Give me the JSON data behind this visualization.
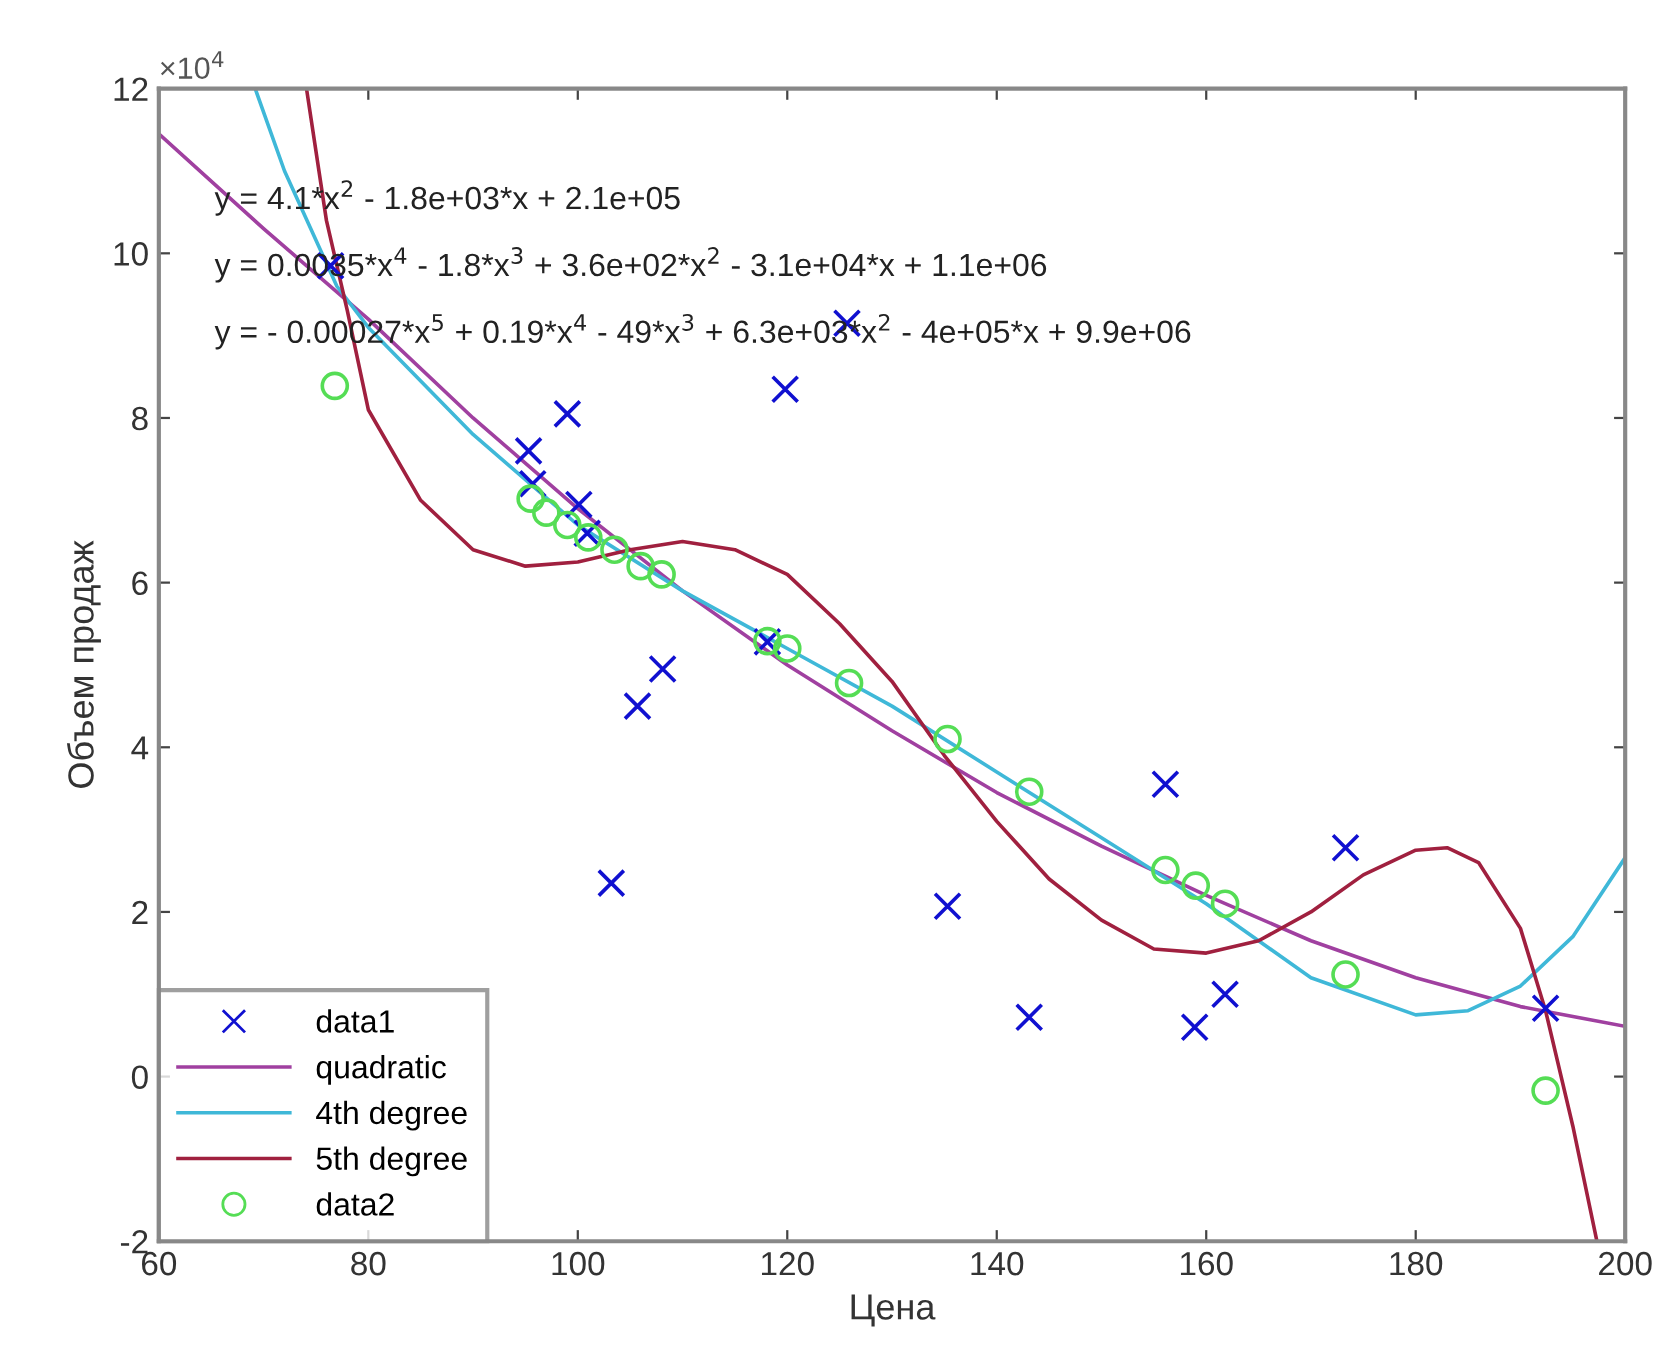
{
  "chart_data": {
    "type": "scatter",
    "xlabel": "Цена",
    "ylabel": "Объем продаж",
    "xlim": [
      60,
      200
    ],
    "xticks": [
      60,
      80,
      100,
      120,
      140,
      160,
      180,
      200
    ],
    "ylim": [
      -2,
      12
    ],
    "yticks": [
      -2,
      0,
      2,
      4,
      6,
      8,
      10,
      12
    ],
    "grid": false,
    "legend": "bottom left",
    "annotations": [
      "×10$^{4}$",
      "y = 4.1*x$^{2}$ - 1.8e+03*x + 2.1e+05",
      "y = 0.0035*x$^{4}$ - 1.8*x$^{3}$ + 3.6e+02*x$^{2}$ - 3.1e+04*x + 1.1e+06",
      "y = - 0.00027*x$^{5}$ + 0.19*x$^{4}$ - 49*x$^{3}$ + 6.3e+03*x$^{2}$ - 4e+05*x + 9.9e+06"
    ],
    "series": [
      {
        "name": "data1",
        "marker": "cross",
        "color": "#1010d0",
        "x": [
          76.4,
          95.3,
          95.7,
          99.0,
          100.1,
          100.9,
          108.1,
          105.7,
          103.2,
          118.1,
          125.7,
          119.8,
          135.3,
          143.1,
          156.1,
          161.8,
          158.9,
          173.3,
          192.4
        ],
        "values": [
          9.85,
          7.6,
          7.2,
          8.05,
          6.95,
          6.6,
          4.95,
          4.5,
          2.35,
          5.28,
          9.15,
          8.35,
          2.07,
          0.72,
          3.55,
          1.0,
          0.6,
          2.78,
          0.83
        ]
      },
      {
        "name": "quadratic",
        "type": "line",
        "marker": "none",
        "line_style": "solid",
        "color": "#a040a0",
        "x": [
          60,
          70,
          80,
          90,
          100,
          110,
          120,
          130,
          140,
          150,
          160,
          170,
          180,
          190,
          200
        ],
        "values": [
          11.45,
          10.3,
          9.2,
          8.0,
          6.9,
          5.9,
          5.0,
          4.2,
          3.45,
          2.8,
          2.2,
          1.65,
          1.2,
          0.85,
          0.61
        ]
      },
      {
        "name": "4th degree",
        "type": "line",
        "marker": "none",
        "line_style": "solid",
        "color": "#3fb8d8",
        "x": [
          69.2,
          72,
          77,
          80,
          90,
          100,
          110,
          120,
          130,
          140,
          150,
          160,
          170,
          180,
          185,
          190,
          195,
          200
        ],
        "values": [
          12.0,
          11.0,
          9.6,
          9.1,
          7.8,
          6.7,
          5.9,
          5.2,
          4.5,
          3.7,
          2.9,
          2.1,
          1.2,
          0.75,
          0.8,
          1.1,
          1.7,
          2.66
        ]
      },
      {
        "name": "5th degree",
        "type": "line",
        "marker": "none",
        "line_style": "solid",
        "color": "#a0203f",
        "x": [
          74.1,
          76,
          78,
          80,
          85,
          90,
          95,
          100,
          105,
          110,
          115,
          120,
          125,
          130,
          135,
          140,
          145,
          150,
          155,
          160,
          165,
          170,
          175,
          180,
          183,
          186,
          190,
          192.4,
          195,
          197.3
        ],
        "values": [
          12.0,
          10.4,
          9.3,
          8.1,
          7.0,
          6.4,
          6.2,
          6.25,
          6.4,
          6.5,
          6.4,
          6.1,
          5.5,
          4.8,
          3.9,
          3.1,
          2.4,
          1.9,
          1.55,
          1.5,
          1.65,
          2.0,
          2.45,
          2.75,
          2.78,
          2.6,
          1.8,
          0.8,
          -0.6,
          -2.0
        ]
      },
      {
        "name": "data2",
        "marker": "circle",
        "color": "#55dd55",
        "x": [
          76.8,
          95.5,
          97,
          99,
          101,
          103.5,
          106,
          108,
          118.1,
          120,
          125.9,
          135.3,
          143.1,
          156.1,
          159,
          161.8,
          173.3,
          192.4
        ],
        "values": [
          8.39,
          7.02,
          6.85,
          6.7,
          6.55,
          6.4,
          6.2,
          6.1,
          5.29,
          5.2,
          4.78,
          4.1,
          3.46,
          2.51,
          2.32,
          2.1,
          1.24,
          -0.17
        ]
      }
    ]
  }
}
